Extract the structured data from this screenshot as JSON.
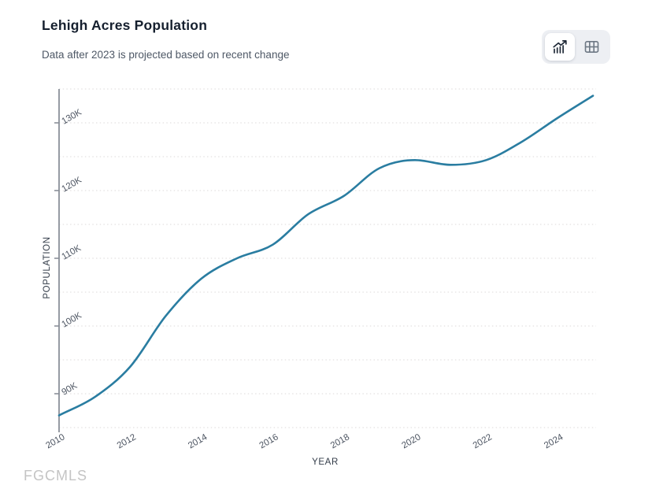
{
  "header": {
    "title": "Lehigh Acres Population",
    "subtitle": "Data after 2023 is projected based on recent change"
  },
  "view_toggle": {
    "active_view": "chart",
    "buttons": [
      {
        "id": "chart",
        "icon": "line-chart-icon",
        "active": true
      },
      {
        "id": "table",
        "icon": "table-icon",
        "active": false
      }
    ]
  },
  "watermark": "FGCMLS",
  "chart_data": {
    "type": "line",
    "title": "Lehigh Acres Population",
    "xlabel": "YEAR",
    "ylabel": "POPULATION",
    "x": [
      2010,
      2011,
      2012,
      2013,
      2014,
      2015,
      2016,
      2017,
      2018,
      2019,
      2020,
      2021,
      2022,
      2023,
      2024,
      2025
    ],
    "series": [
      {
        "name": "Population",
        "values": [
          86800,
          89500,
          94000,
          101500,
          107000,
          110000,
          112000,
          116500,
          119200,
          123300,
          124500,
          123800,
          124500,
          127200,
          130700,
          134000
        ]
      }
    ],
    "x_ticks": [
      2010,
      2012,
      2014,
      2016,
      2018,
      2020,
      2022,
      2024
    ],
    "x_tick_labels": [
      "2010",
      "2012",
      "2014",
      "2016",
      "2018",
      "2020",
      "2022",
      "2024"
    ],
    "y_ticks": [
      90000,
      100000,
      110000,
      120000,
      130000
    ],
    "y_tick_labels": [
      "90K",
      "100K",
      "110K",
      "120K",
      "130K"
    ],
    "xlim": [
      2010,
      2025
    ],
    "ylim": [
      85000,
      135000
    ],
    "grid": {
      "horizontal_every": 5000,
      "style": "dotted"
    },
    "legend": "none",
    "note": "values after 2023 are projected"
  },
  "colors": {
    "line": "#2a7da1",
    "axis": "#8a9099",
    "gridline": "#e3e1e1",
    "tick_label": "#4d5562",
    "axis_title": "#333c49",
    "title": "#16202f",
    "subtitle": "#4e5866",
    "toggle_bg": "#edeff3",
    "toggle_active_bg": "#ffffff",
    "chart_icon": "#1f2937",
    "table_icon": "#6e7884",
    "watermark": "#c4c4c4"
  }
}
